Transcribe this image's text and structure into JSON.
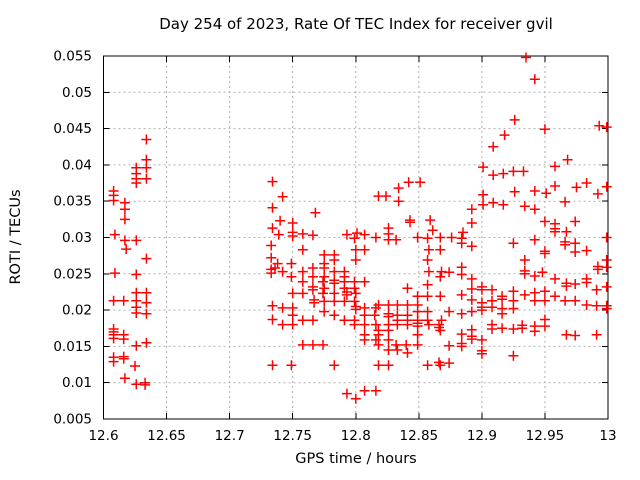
{
  "chart_data": {
    "type": "scatter",
    "title": "Day 254 of 2023, Rate Of TEC Index for receiver gvil",
    "xlabel": "GPS time / hours",
    "ylabel": "ROTI / TECUs",
    "xlim": [
      12.6,
      13.0
    ],
    "ylim": [
      0.005,
      0.055
    ],
    "grid": true,
    "legend": "none",
    "marker": "plus",
    "colors": {
      "points": "#ff0000",
      "grid": "#b0b0b0",
      "frame": "#000000",
      "text": "#000000",
      "background": "#ffffff"
    },
    "x_ticks": [
      {
        "v": 12.6,
        "label": "12.6"
      },
      {
        "v": 12.65,
        "label": "12.65"
      },
      {
        "v": 12.7,
        "label": "12.7"
      },
      {
        "v": 12.75,
        "label": "12.75"
      },
      {
        "v": 12.8,
        "label": "12.8"
      },
      {
        "v": 12.85,
        "label": "12.85"
      },
      {
        "v": 12.9,
        "label": "12.9"
      },
      {
        "v": 12.95,
        "label": "12.95"
      },
      {
        "v": 13,
        "label": "13"
      }
    ],
    "y_ticks": [
      {
        "v": 0.005,
        "label": "0.005"
      },
      {
        "v": 0.01,
        "label": "0.01"
      },
      {
        "v": 0.015,
        "label": "0.015"
      },
      {
        "v": 0.02,
        "label": "0.02"
      },
      {
        "v": 0.025,
        "label": "0.025"
      },
      {
        "v": 0.03,
        "label": "0.03"
      },
      {
        "v": 0.035,
        "label": "0.035"
      },
      {
        "v": 0.04,
        "label": "0.04"
      },
      {
        "v": 0.045,
        "label": "0.045"
      },
      {
        "v": 0.05,
        "label": "0.05"
      },
      {
        "v": 0.055,
        "label": "0.055"
      }
    ],
    "points": [
      [
        12.608,
        0.0364
      ],
      [
        12.608,
        0.0358
      ],
      [
        12.608,
        0.0351
      ],
      [
        12.608,
        0.0213
      ],
      [
        12.608,
        0.0174
      ],
      [
        12.608,
        0.017
      ],
      [
        12.608,
        0.0166
      ],
      [
        12.608,
        0.0161
      ],
      [
        12.608,
        0.0135
      ],
      [
        12.608,
        0.0129
      ],
      [
        12.609,
        0.0304
      ],
      [
        12.609,
        0.0251
      ],
      [
        12.616,
        0.0213
      ],
      [
        12.616,
        0.0166
      ],
      [
        12.616,
        0.016
      ],
      [
        12.616,
        0.0136
      ],
      [
        12.616,
        0.0133
      ],
      [
        12.617,
        0.0348
      ],
      [
        12.617,
        0.0339
      ],
      [
        12.617,
        0.0325
      ],
      [
        12.617,
        0.0296
      ],
      [
        12.617,
        0.0106
      ],
      [
        12.618,
        0.0284
      ],
      [
        12.625,
        0.0123
      ],
      [
        12.626,
        0.0396
      ],
      [
        12.626,
        0.0388
      ],
      [
        12.626,
        0.0381
      ],
      [
        12.626,
        0.0375
      ],
      [
        12.626,
        0.0296
      ],
      [
        12.626,
        0.0249
      ],
      [
        12.626,
        0.0224
      ],
      [
        12.626,
        0.0213
      ],
      [
        12.626,
        0.0204
      ],
      [
        12.626,
        0.0196
      ],
      [
        12.626,
        0.0151
      ],
      [
        12.626,
        0.0098
      ],
      [
        12.633,
        0.01
      ],
      [
        12.633,
        0.0097
      ],
      [
        12.634,
        0.0435
      ],
      [
        12.634,
        0.0407
      ],
      [
        12.634,
        0.0396
      ],
      [
        12.634,
        0.0381
      ],
      [
        12.634,
        0.0271
      ],
      [
        12.634,
        0.0224
      ],
      [
        12.634,
        0.021
      ],
      [
        12.634,
        0.0195
      ],
      [
        12.634,
        0.0155
      ],
      [
        12.733,
        0.0289
      ],
      [
        12.733,
        0.0272
      ],
      [
        12.733,
        0.0256
      ],
      [
        12.733,
        0.0251
      ],
      [
        12.734,
        0.0377
      ],
      [
        12.734,
        0.0341
      ],
      [
        12.734,
        0.0313
      ],
      [
        12.734,
        0.0206
      ],
      [
        12.734,
        0.0187
      ],
      [
        12.734,
        0.0124
      ],
      [
        12.736,
        0.0258
      ],
      [
        12.738,
        0.0264
      ],
      [
        12.739,
        0.0304
      ],
      [
        12.74,
        0.0323
      ],
      [
        12.742,
        0.0356
      ],
      [
        12.742,
        0.0253
      ],
      [
        12.742,
        0.0203
      ],
      [
        12.742,
        0.018
      ],
      [
        12.749,
        0.0264
      ],
      [
        12.749,
        0.0246
      ],
      [
        12.749,
        0.0124
      ],
      [
        12.75,
        0.032
      ],
      [
        12.75,
        0.0307
      ],
      [
        12.75,
        0.0302
      ],
      [
        12.75,
        0.0223
      ],
      [
        12.75,
        0.0203
      ],
      [
        12.75,
        0.0193
      ],
      [
        12.75,
        0.018
      ],
      [
        12.758,
        0.0305
      ],
      [
        12.758,
        0.0283
      ],
      [
        12.758,
        0.0253
      ],
      [
        12.758,
        0.0239
      ],
      [
        12.758,
        0.0223
      ],
      [
        12.758,
        0.0186
      ],
      [
        12.758,
        0.0152
      ],
      [
        12.766,
        0.0303
      ],
      [
        12.766,
        0.0258
      ],
      [
        12.766,
        0.0246
      ],
      [
        12.766,
        0.0232
      ],
      [
        12.766,
        0.0228
      ],
      [
        12.766,
        0.0186
      ],
      [
        12.766,
        0.0152
      ],
      [
        12.767,
        0.0214
      ],
      [
        12.767,
        0.021
      ],
      [
        12.768,
        0.0334
      ],
      [
        12.774,
        0.0239
      ],
      [
        12.774,
        0.0223
      ],
      [
        12.774,
        0.0152
      ],
      [
        12.775,
        0.0276
      ],
      [
        12.775,
        0.0264
      ],
      [
        12.775,
        0.0258
      ],
      [
        12.775,
        0.0246
      ],
      [
        12.775,
        0.023
      ],
      [
        12.775,
        0.0212
      ],
      [
        12.775,
        0.0198
      ],
      [
        12.783,
        0.0276
      ],
      [
        12.783,
        0.0269
      ],
      [
        12.783,
        0.0253
      ],
      [
        12.783,
        0.0241
      ],
      [
        12.783,
        0.0237
      ],
      [
        12.783,
        0.0223
      ],
      [
        12.783,
        0.0212
      ],
      [
        12.783,
        0.0193
      ],
      [
        12.783,
        0.0124
      ],
      [
        12.791,
        0.0253
      ],
      [
        12.791,
        0.0246
      ],
      [
        12.791,
        0.0239
      ],
      [
        12.791,
        0.023
      ],
      [
        12.791,
        0.0212
      ],
      [
        12.791,
        0.0186
      ],
      [
        12.793,
        0.0304
      ],
      [
        12.793,
        0.0225
      ],
      [
        12.793,
        0.0221
      ],
      [
        12.793,
        0.0085
      ],
      [
        12.799,
        0.0299
      ],
      [
        12.799,
        0.0239
      ],
      [
        12.799,
        0.023
      ],
      [
        12.799,
        0.0212
      ],
      [
        12.799,
        0.0186
      ],
      [
        12.799,
        0.018
      ],
      [
        12.8,
        0.0283
      ],
      [
        12.8,
        0.0269
      ],
      [
        12.8,
        0.0223
      ],
      [
        12.8,
        0.0205
      ],
      [
        12.8,
        0.0201
      ],
      [
        12.8,
        0.0078
      ],
      [
        12.801,
        0.0306
      ],
      [
        12.807,
        0.0304
      ],
      [
        12.807,
        0.0283
      ],
      [
        12.807,
        0.0239
      ],
      [
        12.807,
        0.0203
      ],
      [
        12.807,
        0.0193
      ],
      [
        12.807,
        0.018
      ],
      [
        12.807,
        0.0166
      ],
      [
        12.807,
        0.0159
      ],
      [
        12.807,
        0.0089
      ],
      [
        12.815,
        0.0193
      ],
      [
        12.816,
        0.03
      ],
      [
        12.816,
        0.0203
      ],
      [
        12.816,
        0.018
      ],
      [
        12.816,
        0.0159
      ],
      [
        12.816,
        0.0089
      ],
      [
        12.818,
        0.0357
      ],
      [
        12.818,
        0.0207
      ],
      [
        12.818,
        0.0172
      ],
      [
        12.818,
        0.0166
      ],
      [
        12.818,
        0.0152
      ],
      [
        12.818,
        0.0124
      ],
      [
        12.824,
        0.0357
      ],
      [
        12.826,
        0.0313
      ],
      [
        12.826,
        0.0305
      ],
      [
        12.826,
        0.0297
      ],
      [
        12.826,
        0.0207
      ],
      [
        12.826,
        0.0195
      ],
      [
        12.826,
        0.0191
      ],
      [
        12.826,
        0.018
      ],
      [
        12.826,
        0.0172
      ],
      [
        12.826,
        0.0159
      ],
      [
        12.826,
        0.0145
      ],
      [
        12.826,
        0.0124
      ],
      [
        12.832,
        0.0297
      ],
      [
        12.832,
        0.0152
      ],
      [
        12.833,
        0.0207
      ],
      [
        12.833,
        0.0193
      ],
      [
        12.833,
        0.0186
      ],
      [
        12.833,
        0.018
      ],
      [
        12.833,
        0.0145
      ],
      [
        12.834,
        0.0368
      ],
      [
        12.834,
        0.035
      ],
      [
        12.84,
        0.0152
      ],
      [
        12.841,
        0.023
      ],
      [
        12.841,
        0.0207
      ],
      [
        12.841,
        0.0193
      ],
      [
        12.841,
        0.0186
      ],
      [
        12.841,
        0.018
      ],
      [
        12.841,
        0.0141
      ],
      [
        12.842,
        0.0376
      ],
      [
        12.843,
        0.0324
      ],
      [
        12.843,
        0.0321
      ],
      [
        12.849,
        0.03
      ],
      [
        12.849,
        0.0219
      ],
      [
        12.849,
        0.0207
      ],
      [
        12.849,
        0.0198
      ],
      [
        12.849,
        0.0186
      ],
      [
        12.849,
        0.0182
      ],
      [
        12.849,
        0.0178
      ],
      [
        12.849,
        0.0166
      ],
      [
        12.849,
        0.0152
      ],
      [
        12.851,
        0.0376
      ],
      [
        12.857,
        0.0299
      ],
      [
        12.857,
        0.0269
      ],
      [
        12.857,
        0.0235
      ],
      [
        12.857,
        0.0219
      ],
      [
        12.857,
        0.0198
      ],
      [
        12.857,
        0.0186
      ],
      [
        12.857,
        0.0124
      ],
      [
        12.858,
        0.0283
      ],
      [
        12.858,
        0.0253
      ],
      [
        12.858,
        0.018
      ],
      [
        12.859,
        0.0324
      ],
      [
        12.861,
        0.031
      ],
      [
        12.866,
        0.018
      ],
      [
        12.866,
        0.0176
      ],
      [
        12.866,
        0.0128
      ],
      [
        12.867,
        0.03
      ],
      [
        12.867,
        0.0283
      ],
      [
        12.867,
        0.0246
      ],
      [
        12.867,
        0.0219
      ],
      [
        12.867,
        0.0172
      ],
      [
        12.867,
        0.0124
      ],
      [
        12.868,
        0.0253
      ],
      [
        12.868,
        0.0186
      ],
      [
        12.874,
        0.0252
      ],
      [
        12.874,
        0.0198
      ],
      [
        12.874,
        0.0151
      ],
      [
        12.874,
        0.0127
      ],
      [
        12.876,
        0.03
      ],
      [
        12.884,
        0.0299
      ],
      [
        12.884,
        0.0292
      ],
      [
        12.884,
        0.0259
      ],
      [
        12.884,
        0.0249
      ],
      [
        12.884,
        0.0221
      ],
      [
        12.884,
        0.0195
      ],
      [
        12.884,
        0.0167
      ],
      [
        12.884,
        0.0154
      ],
      [
        12.884,
        0.015
      ],
      [
        12.885,
        0.0307
      ],
      [
        12.892,
        0.0339
      ],
      [
        12.892,
        0.032
      ],
      [
        12.892,
        0.0288
      ],
      [
        12.892,
        0.0243
      ],
      [
        12.892,
        0.0229
      ],
      [
        12.892,
        0.0214
      ],
      [
        12.892,
        0.0198
      ],
      [
        12.892,
        0.0173
      ],
      [
        12.892,
        0.0164
      ],
      [
        12.892,
        0.016
      ],
      [
        12.9,
        0.0232
      ],
      [
        12.9,
        0.0228
      ],
      [
        12.9,
        0.021
      ],
      [
        12.9,
        0.0204
      ],
      [
        12.9,
        0.02
      ],
      [
        12.9,
        0.0159
      ],
      [
        12.9,
        0.0144
      ],
      [
        12.9,
        0.014
      ],
      [
        12.901,
        0.0397
      ],
      [
        12.901,
        0.0359
      ],
      [
        12.901,
        0.0345
      ],
      [
        12.908,
        0.0228
      ],
      [
        12.908,
        0.0213
      ],
      [
        12.908,
        0.0204
      ],
      [
        12.908,
        0.018
      ],
      [
        12.908,
        0.0174
      ],
      [
        12.909,
        0.0425
      ],
      [
        12.909,
        0.0386
      ],
      [
        12.909,
        0.0348
      ],
      [
        12.916,
        0.0219
      ],
      [
        12.916,
        0.0215
      ],
      [
        12.916,
        0.0202
      ],
      [
        12.916,
        0.0195
      ],
      [
        12.916,
        0.0175
      ],
      [
        12.917,
        0.0388
      ],
      [
        12.917,
        0.0345
      ],
      [
        12.918,
        0.0441
      ],
      [
        12.925,
        0.0391
      ],
      [
        12.925,
        0.0292
      ],
      [
        12.925,
        0.0226
      ],
      [
        12.925,
        0.0213
      ],
      [
        12.925,
        0.0202
      ],
      [
        12.925,
        0.0174
      ],
      [
        12.925,
        0.0137
      ],
      [
        12.926,
        0.0462
      ],
      [
        12.926,
        0.0363
      ],
      [
        12.932,
        0.0179
      ],
      [
        12.932,
        0.0175
      ],
      [
        12.933,
        0.0391
      ],
      [
        12.934,
        0.0343
      ],
      [
        12.934,
        0.0269
      ],
      [
        12.934,
        0.0254
      ],
      [
        12.934,
        0.025
      ],
      [
        12.934,
        0.0221
      ],
      [
        12.935,
        0.0548
      ],
      [
        12.942,
        0.0518
      ],
      [
        12.942,
        0.0364
      ],
      [
        12.942,
        0.0339
      ],
      [
        12.942,
        0.0297
      ],
      [
        12.942,
        0.0247
      ],
      [
        12.942,
        0.0224
      ],
      [
        12.942,
        0.0213
      ],
      [
        12.942,
        0.0178
      ],
      [
        12.942,
        0.0171
      ],
      [
        12.948,
        0.0252
      ],
      [
        12.95,
        0.0449
      ],
      [
        12.95,
        0.0322
      ],
      [
        12.95,
        0.0281
      ],
      [
        12.95,
        0.0278
      ],
      [
        12.95,
        0.0226
      ],
      [
        12.95,
        0.0213
      ],
      [
        12.95,
        0.0187
      ],
      [
        12.95,
        0.0178
      ],
      [
        12.951,
        0.0361
      ],
      [
        12.958,
        0.0398
      ],
      [
        12.958,
        0.0371
      ],
      [
        12.958,
        0.0319
      ],
      [
        12.958,
        0.0312
      ],
      [
        12.958,
        0.0308
      ],
      [
        12.958,
        0.0243
      ],
      [
        12.958,
        0.0219
      ],
      [
        12.966,
        0.0349
      ],
      [
        12.966,
        0.0294
      ],
      [
        12.966,
        0.029
      ],
      [
        12.966,
        0.0213
      ],
      [
        12.967,
        0.0308
      ],
      [
        12.967,
        0.0237
      ],
      [
        12.967,
        0.0233
      ],
      [
        12.967,
        0.0166
      ],
      [
        12.968,
        0.0407
      ],
      [
        12.974,
        0.0322
      ],
      [
        12.974,
        0.0292
      ],
      [
        12.974,
        0.028
      ],
      [
        12.974,
        0.0236
      ],
      [
        12.974,
        0.0213
      ],
      [
        12.974,
        0.0165
      ],
      [
        12.975,
        0.0369
      ],
      [
        12.983,
        0.0375
      ],
      [
        12.983,
        0.0282
      ],
      [
        12.983,
        0.0243
      ],
      [
        12.983,
        0.0238
      ],
      [
        12.983,
        0.0207
      ],
      [
        12.991,
        0.0228
      ],
      [
        12.991,
        0.0206
      ],
      [
        12.991,
        0.0166
      ],
      [
        12.992,
        0.036
      ],
      [
        12.992,
        0.026
      ],
      [
        12.992,
        0.0256
      ],
      [
        12.993,
        0.0454
      ],
      [
        12.999,
        0.0452
      ],
      [
        12.999,
        0.037
      ],
      [
        12.999,
        0.03
      ],
      [
        12.999,
        0.0269
      ],
      [
        12.999,
        0.0259
      ],
      [
        12.999,
        0.0232
      ],
      [
        12.999,
        0.0206
      ],
      [
        12.999,
        0.0202
      ]
    ]
  }
}
